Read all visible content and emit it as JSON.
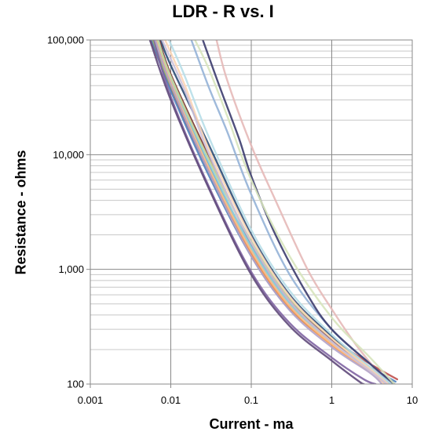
{
  "chart_data": {
    "type": "line",
    "title": "LDR - R vs. I",
    "xlabel": "Current - ma",
    "ylabel": "Resistance - ohms",
    "x_scale": "log",
    "y_scale": "log",
    "xlim": [
      0.001,
      10
    ],
    "ylim": [
      100,
      100000
    ],
    "x_ticks": [
      "0.001",
      "0.01",
      "0.1",
      "1",
      "10"
    ],
    "y_ticks": [
      "100",
      "1,000",
      "10,000",
      "100,000"
    ],
    "grid": true,
    "legend": "none",
    "series": [
      {
        "color": "#c0504d",
        "points": [
          [
            0.0056,
            100000
          ],
          [
            0.01,
            38000
          ],
          [
            0.03,
            7000
          ],
          [
            0.1,
            1400
          ],
          [
            0.3,
            480
          ],
          [
            1,
            250
          ],
          [
            3,
            150
          ],
          [
            6.5,
            110
          ]
        ]
      },
      {
        "color": "#4f81bd",
        "points": [
          [
            0.0058,
            100000
          ],
          [
            0.01,
            36000
          ],
          [
            0.03,
            6500
          ],
          [
            0.1,
            1300
          ],
          [
            0.3,
            450
          ],
          [
            1,
            230
          ],
          [
            3,
            140
          ],
          [
            6.2,
            105
          ]
        ]
      },
      {
        "color": "#9bbb59",
        "points": [
          [
            0.006,
            100000
          ],
          [
            0.01,
            40000
          ],
          [
            0.03,
            7500
          ],
          [
            0.1,
            1500
          ],
          [
            0.3,
            500
          ],
          [
            1,
            240
          ],
          [
            3,
            140
          ],
          [
            6,
            100
          ]
        ]
      },
      {
        "color": "#8064a2",
        "points": [
          [
            0.0062,
            100000
          ],
          [
            0.01,
            32000
          ],
          [
            0.03,
            5200
          ],
          [
            0.1,
            950
          ],
          [
            0.3,
            340
          ],
          [
            1,
            170
          ],
          [
            2.5,
            110
          ],
          [
            3.5,
            100
          ]
        ]
      },
      {
        "color": "#4bacc6",
        "points": [
          [
            0.0065,
            100000
          ],
          [
            0.01,
            45000
          ],
          [
            0.03,
            8000
          ],
          [
            0.1,
            1600
          ],
          [
            0.3,
            520
          ],
          [
            1,
            240
          ],
          [
            3,
            140
          ],
          [
            5.5,
            100
          ]
        ]
      },
      {
        "color": "#f79646",
        "points": [
          [
            0.0068,
            100000
          ],
          [
            0.01,
            42000
          ],
          [
            0.03,
            7200
          ],
          [
            0.1,
            1350
          ],
          [
            0.3,
            460
          ],
          [
            1,
            220
          ],
          [
            3,
            130
          ],
          [
            5,
            100
          ]
        ]
      },
      {
        "color": "#2c4d75",
        "points": [
          [
            0.0075,
            100000
          ],
          [
            0.01,
            60000
          ],
          [
            0.03,
            12000
          ],
          [
            0.1,
            2000
          ],
          [
            0.3,
            600
          ],
          [
            1,
            260
          ],
          [
            3,
            140
          ],
          [
            5.2,
            100
          ]
        ]
      },
      {
        "color": "#772c2a",
        "points": [
          [
            0.0072,
            100000
          ],
          [
            0.01,
            50000
          ],
          [
            0.03,
            9500
          ],
          [
            0.1,
            1700
          ],
          [
            0.3,
            540
          ],
          [
            1,
            240
          ],
          [
            3,
            135
          ],
          [
            5.2,
            100
          ]
        ]
      },
      {
        "color": "#5f497a",
        "points": [
          [
            0.0055,
            100000
          ],
          [
            0.01,
            30000
          ],
          [
            0.03,
            5000
          ],
          [
            0.1,
            900
          ],
          [
            0.3,
            320
          ],
          [
            1,
            160
          ],
          [
            2.2,
            105
          ],
          [
            2.5,
            100
          ]
        ]
      },
      {
        "color": "#93cddd",
        "points": [
          [
            0.007,
            100000
          ],
          [
            0.01,
            47000
          ],
          [
            0.03,
            8500
          ],
          [
            0.1,
            1550
          ],
          [
            0.3,
            500
          ],
          [
            1,
            230
          ],
          [
            3,
            135
          ],
          [
            4.8,
            100
          ]
        ]
      },
      {
        "color": "#fac090",
        "points": [
          [
            0.0066,
            100000
          ],
          [
            0.01,
            43000
          ],
          [
            0.03,
            7600
          ],
          [
            0.1,
            1450
          ],
          [
            0.3,
            480
          ],
          [
            1,
            225
          ],
          [
            3,
            130
          ],
          [
            4.6,
            100
          ]
        ]
      },
      {
        "color": "#c3d69b",
        "points": [
          [
            0.0069,
            100000
          ],
          [
            0.01,
            48000
          ],
          [
            0.03,
            9000
          ],
          [
            0.1,
            1750
          ],
          [
            0.3,
            560
          ],
          [
            1,
            250
          ],
          [
            3,
            140
          ],
          [
            5.8,
            100
          ]
        ]
      },
      {
        "color": "#b3a2c7",
        "points": [
          [
            0.0064,
            100000
          ],
          [
            0.01,
            41000
          ],
          [
            0.03,
            7000
          ],
          [
            0.1,
            1300
          ],
          [
            0.3,
            440
          ],
          [
            1,
            210
          ],
          [
            3,
            125
          ],
          [
            4.2,
            100
          ]
        ]
      },
      {
        "color": "#e6b9b8",
        "points": [
          [
            0.037,
            100000
          ],
          [
            0.05,
            45000
          ],
          [
            0.1,
            12000
          ],
          [
            0.2,
            4000
          ],
          [
            0.5,
            1000
          ],
          [
            1,
            450
          ],
          [
            2,
            220
          ],
          [
            4,
            120
          ],
          [
            5,
            100
          ]
        ]
      },
      {
        "color": "#95b3d7",
        "points": [
          [
            0.018,
            100000
          ],
          [
            0.03,
            38000
          ],
          [
            0.05,
            16000
          ],
          [
            0.1,
            4500
          ],
          [
            0.3,
            900
          ],
          [
            1,
            300
          ],
          [
            3,
            150
          ],
          [
            5.5,
            100
          ]
        ]
      },
      {
        "color": "#3c3c6e",
        "points": [
          [
            0.025,
            100000
          ],
          [
            0.04,
            40000
          ],
          [
            0.07,
            14000
          ],
          [
            0.1,
            6500
          ],
          [
            0.2,
            2000
          ],
          [
            0.5,
            600
          ],
          [
            1,
            300
          ],
          [
            3,
            150
          ],
          [
            6,
            100
          ]
        ]
      },
      {
        "color": "#d7e4bd",
        "points": [
          [
            0.02,
            100000
          ],
          [
            0.03,
            55000
          ],
          [
            0.05,
            22000
          ],
          [
            0.1,
            6000
          ],
          [
            0.3,
            1300
          ],
          [
            1,
            380
          ],
          [
            3,
            170
          ],
          [
            6,
            100
          ]
        ]
      },
      {
        "color": "#b7dee8",
        "points": [
          [
            0.0095,
            100000
          ],
          [
            0.015,
            48000
          ],
          [
            0.03,
            14000
          ],
          [
            0.1,
            2200
          ],
          [
            0.3,
            650
          ],
          [
            1,
            270
          ],
          [
            3,
            140
          ],
          [
            5.4,
            100
          ]
        ]
      },
      {
        "color": "#fcd5b5",
        "points": [
          [
            0.0085,
            100000
          ],
          [
            0.015,
            40000
          ],
          [
            0.03,
            11000
          ],
          [
            0.1,
            1900
          ],
          [
            0.3,
            580
          ],
          [
            1,
            250
          ],
          [
            3,
            135
          ],
          [
            5,
            100
          ]
        ]
      },
      {
        "color": "#ccc1da",
        "points": [
          [
            0.0078,
            100000
          ],
          [
            0.015,
            36000
          ],
          [
            0.03,
            10000
          ],
          [
            0.1,
            1700
          ],
          [
            0.3,
            530
          ],
          [
            1,
            235
          ],
          [
            3,
            130
          ],
          [
            4.8,
            100
          ]
        ]
      }
    ]
  }
}
